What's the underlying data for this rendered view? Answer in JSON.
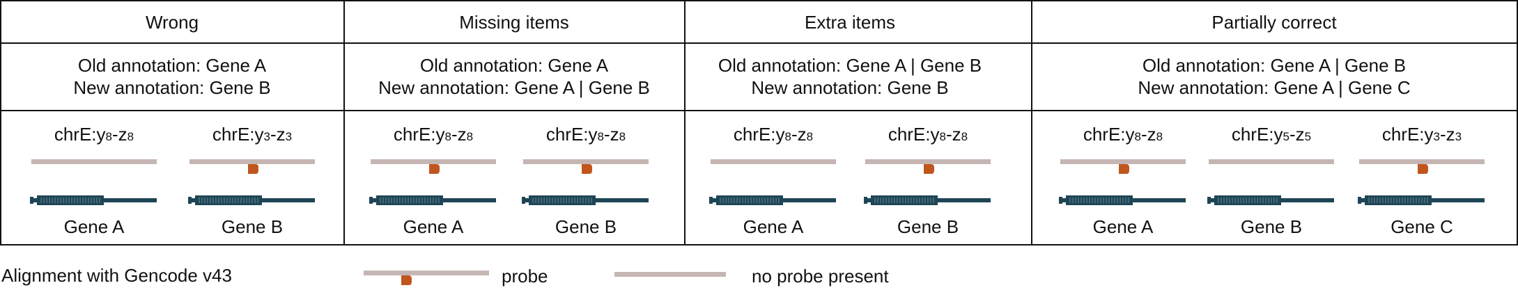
{
  "colors": {
    "probe_line": "#c6b6b3",
    "probe_mark": "#c0561e",
    "gene": "#1e4555",
    "border": "#111111"
  },
  "columns": [
    {
      "header": "Wrong",
      "old_annotation": "Old annotation: Gene A",
      "new_annotation": "New annotation: Gene B",
      "tracks": [
        {
          "region": "chrE:y8-z8",
          "region_base": "chrE:",
          "region_y": "y",
          "region_y_sub": "8",
          "region_z": "z",
          "region_z_sub": "8",
          "probe": false,
          "gene": "Gene A"
        },
        {
          "region": "chrE:y3-z3",
          "region_base": "chrE:",
          "region_y": "y",
          "region_y_sub": "3",
          "region_z": "z",
          "region_z_sub": "3",
          "probe": true,
          "gene": "Gene B"
        }
      ]
    },
    {
      "header": "Missing items",
      "old_annotation": "Old annotation: Gene A",
      "new_annotation": "New annotation: Gene A | Gene B",
      "tracks": [
        {
          "region": "chrE:y8-z8",
          "region_base": "chrE:",
          "region_y": "y",
          "region_y_sub": "8",
          "region_z": "z",
          "region_z_sub": "8",
          "probe": true,
          "gene": "Gene A"
        },
        {
          "region": "chrE:y8-z8",
          "region_base": "chrE:",
          "region_y": "y",
          "region_y_sub": "8",
          "region_z": "z",
          "region_z_sub": "8",
          "probe": true,
          "gene": "Gene B"
        }
      ]
    },
    {
      "header": "Extra items",
      "old_annotation": "Old annotation: Gene A | Gene B",
      "new_annotation": "New annotation: Gene B",
      "tracks": [
        {
          "region": "chrE:y8-z8",
          "region_base": "chrE:",
          "region_y": "y",
          "region_y_sub": "8",
          "region_z": "z",
          "region_z_sub": "8",
          "probe": false,
          "gene": "Gene A"
        },
        {
          "region": "chrE:y8-z8",
          "region_base": "chrE:",
          "region_y": "y",
          "region_y_sub": "8",
          "region_z": "z",
          "region_z_sub": "8",
          "probe": true,
          "gene": "Gene B"
        }
      ]
    },
    {
      "header": "Partially correct",
      "old_annotation": "Old annotation: Gene A | Gene B",
      "new_annotation": "New annotation: Gene A | Gene C",
      "tracks": [
        {
          "region": "chrE:y8-z8",
          "region_base": "chrE:",
          "region_y": "y",
          "region_y_sub": "8",
          "region_z": "z",
          "region_z_sub": "8",
          "probe": true,
          "gene": "Gene A"
        },
        {
          "region": "chrE:y5-z5",
          "region_base": "chrE:",
          "region_y": "y",
          "region_y_sub": "5",
          "region_z": "z",
          "region_z_sub": "5",
          "probe": false,
          "gene": "Gene B"
        },
        {
          "region": "chrE:y3-z3",
          "region_base": "chrE:",
          "region_y": "y",
          "region_y_sub": "3",
          "region_z": "z",
          "region_z_sub": "3",
          "probe": true,
          "gene": "Gene C"
        }
      ]
    }
  ],
  "legend": {
    "title": "Alignment with Gencode v43",
    "probe_label": "probe",
    "no_probe_label": "no probe present"
  }
}
